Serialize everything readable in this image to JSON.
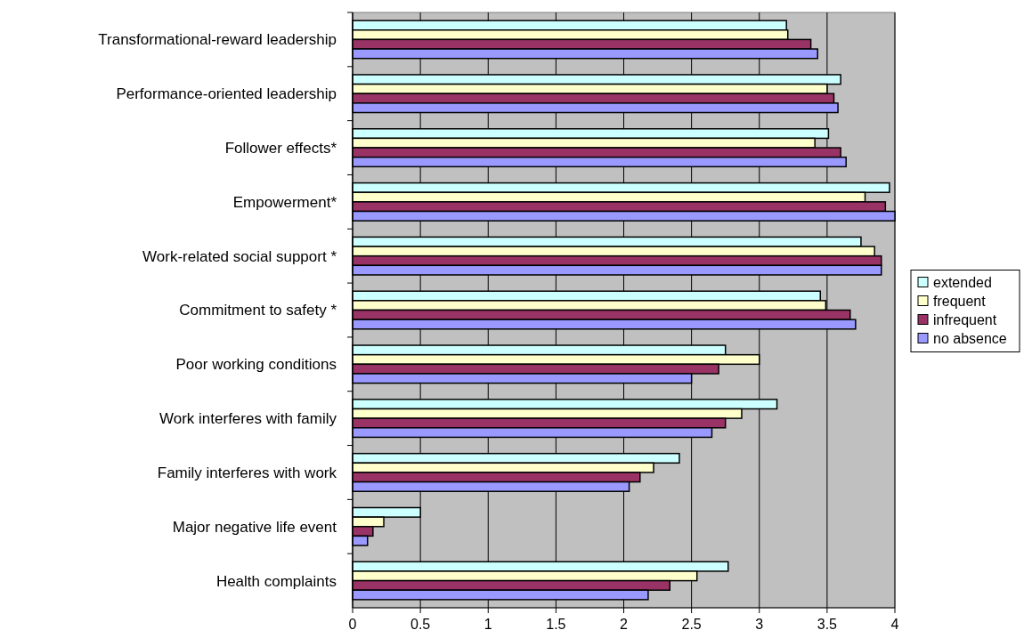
{
  "chart_data": {
    "type": "bar",
    "orientation": "horizontal",
    "categories": [
      "Transformational-reward leadership",
      "Performance-oriented leadership",
      "Follower effects*",
      "Empowerment*",
      "Work-related social support *",
      "Commitment to safety *",
      "Poor working conditions",
      "Work interferes with family",
      "Family interferes with work",
      "Major negative life event",
      "Health complaints"
    ],
    "series": [
      {
        "name": "extended",
        "color": "#ccffff",
        "values": [
          3.2,
          3.6,
          3.51,
          3.96,
          3.75,
          3.45,
          2.75,
          3.13,
          2.41,
          0.5,
          2.77
        ]
      },
      {
        "name": "frequent",
        "color": "#ffffcc",
        "values": [
          3.21,
          3.5,
          3.41,
          3.78,
          3.85,
          3.49,
          3.0,
          2.87,
          2.22,
          0.23,
          2.54
        ]
      },
      {
        "name": "infrequent",
        "color": "#993366",
        "values": [
          3.38,
          3.55,
          3.6,
          3.93,
          3.9,
          3.67,
          2.7,
          2.75,
          2.12,
          0.15,
          2.34
        ]
      },
      {
        "name": "no absence",
        "color": "#9999ff",
        "values": [
          3.43,
          3.58,
          3.64,
          4.0,
          3.9,
          3.71,
          2.5,
          2.65,
          2.04,
          0.11,
          2.18
        ]
      }
    ],
    "xlim": [
      0,
      4
    ],
    "xticks": [
      0,
      0.5,
      1,
      1.5,
      2,
      2.5,
      3,
      3.5,
      4
    ],
    "grid": "x",
    "legend": "right"
  }
}
